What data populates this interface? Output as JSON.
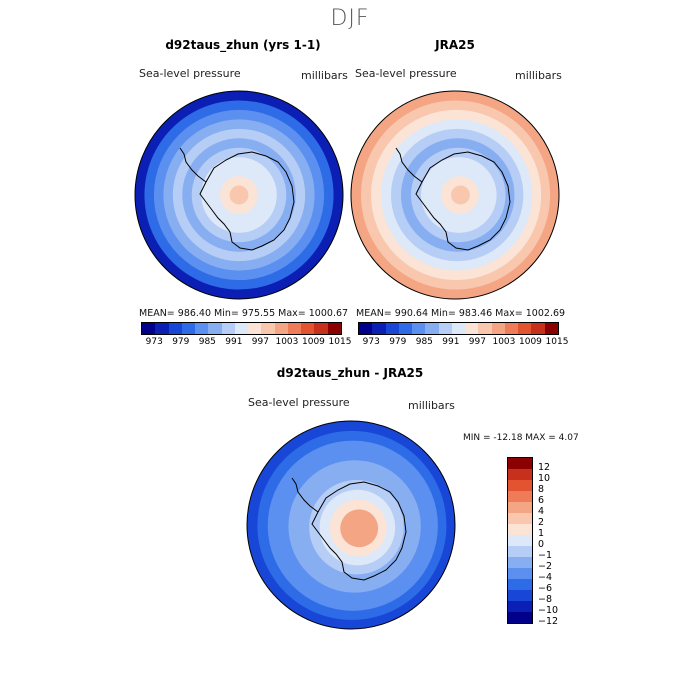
{
  "figure_title": "DJF",
  "chart_data": [
    {
      "type": "heatmap",
      "title": "d92taus_zhun (yrs 1-1)",
      "variable": "Sea-level pressure",
      "units": "millibars",
      "projection": "south polar stereographic",
      "stats": {
        "mean": 986.4,
        "min": 975.55,
        "max": 1000.67
      },
      "stats_text": "MEAN= 986.40   Min= 975.55   Max= 1000.67",
      "colorbar_levels": [
        973,
        976,
        979,
        982,
        985,
        988,
        991,
        994,
        997,
        1000,
        1003,
        1006,
        1009,
        1012,
        1015
      ],
      "colorbar_ticks": [
        "973",
        "979",
        "985",
        "991",
        "997",
        "1003",
        "1009",
        "1015"
      ],
      "field_rings": [
        975,
        979,
        983,
        985,
        988,
        985,
        988,
        991,
        993,
        995,
        997
      ]
    },
    {
      "type": "heatmap",
      "title": "JRA25",
      "variable": "Sea-level pressure",
      "units": "millibars",
      "projection": "south polar stereographic",
      "stats": {
        "mean": 990.64,
        "min": 983.46,
        "max": 1002.69
      },
      "stats_text": "MEAN= 990.64   Min= 983.46   Max= 1002.69",
      "colorbar_levels": [
        973,
        976,
        979,
        982,
        985,
        988,
        991,
        994,
        997,
        1000,
        1003,
        1006,
        1009,
        1012,
        1015
      ],
      "colorbar_ticks": [
        "973",
        "979",
        "985",
        "991",
        "997",
        "1003",
        "1009",
        "1015"
      ],
      "field_rings": [
        1002,
        998,
        995,
        992,
        989,
        986,
        988,
        991,
        993,
        995,
        997
      ]
    },
    {
      "type": "heatmap",
      "title": "d92taus_zhun - JRA25",
      "variable": "Sea-level pressure",
      "units": "millibars",
      "projection": "south polar stereographic",
      "stats": {
        "min": -12.18,
        "max": 4.07
      },
      "stats_text": "MIN = -12.18 MAX =    4.07",
      "colorbar_levels": [
        -12,
        -10,
        -8,
        -6,
        -4,
        -2,
        -1,
        0,
        1,
        2,
        4,
        6,
        8,
        10,
        12
      ],
      "colorbar_ticks": [
        "12",
        "10",
        "8",
        "6",
        "4",
        "2",
        "1",
        "0",
        "−1",
        "−2",
        "−4",
        "−6",
        "−8",
        "−10",
        "−12"
      ],
      "field_rings": [
        -9,
        -8,
        -6,
        -5,
        -4,
        -3,
        -2,
        -1,
        0,
        2,
        3
      ]
    }
  ],
  "colors": {
    "abs_scale": [
      "#00008b",
      "#0b1fb5",
      "#1846d6",
      "#2e6be6",
      "#5b8ff0",
      "#88aef2",
      "#b6cdf5",
      "#dde8f8",
      "#fbe4d6",
      "#f8c7ad",
      "#f4a584",
      "#ef7c58",
      "#e4532f",
      "#c7301a",
      "#8b0000"
    ],
    "diff_scale": [
      "#00008b",
      "#0b1fb5",
      "#1846d6",
      "#2e6be6",
      "#5b8ff0",
      "#88aef2",
      "#b6cdf5",
      "#dde8f8",
      "#fbe4d6",
      "#f8c7ad",
      "#f4a584",
      "#ef7c58",
      "#e4532f",
      "#c7301a",
      "#8b0000"
    ]
  }
}
